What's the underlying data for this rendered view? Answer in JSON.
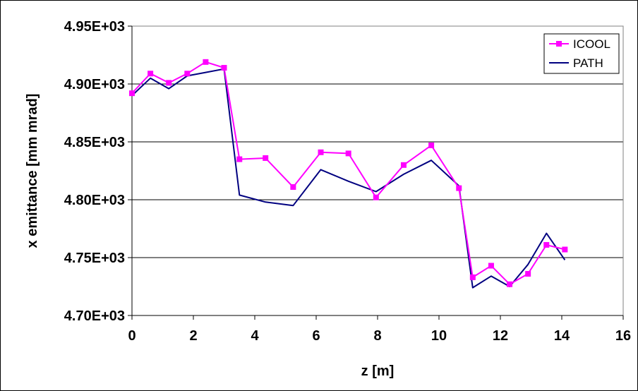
{
  "chart_data": {
    "type": "line",
    "xlabel": "z [m]",
    "ylabel": "x emittance [mm mrad]",
    "xlim": [
      0,
      16
    ],
    "ylim": [
      4700,
      4950
    ],
    "x_ticks": [
      0,
      2,
      4,
      6,
      8,
      10,
      12,
      14,
      16
    ],
    "x_tick_labels": [
      "0",
      "2",
      "4",
      "6",
      "8",
      "10",
      "12",
      "14",
      "16"
    ],
    "y_ticks": [
      4700,
      4750,
      4800,
      4850,
      4900,
      4950
    ],
    "y_tick_labels": [
      "4.70E+03",
      "4.75E+03",
      "4.80E+03",
      "4.85E+03",
      "4.90E+03",
      "4.95E+03"
    ],
    "grid": "horizontal major gridlines",
    "legend_position": "top-right",
    "series": [
      {
        "name": "ICOOL",
        "color": "#ff00ff",
        "marker": "square",
        "points": [
          [
            0.0,
            4892
          ],
          [
            0.6,
            4909
          ],
          [
            1.2,
            4901
          ],
          [
            1.8,
            4909
          ],
          [
            2.4,
            4919
          ],
          [
            3.0,
            4914
          ],
          [
            3.5,
            4835
          ],
          [
            4.35,
            4836
          ],
          [
            5.25,
            4811
          ],
          [
            6.15,
            4841
          ],
          [
            7.05,
            4840
          ],
          [
            7.95,
            4802
          ],
          [
            8.85,
            4830
          ],
          [
            9.75,
            4847
          ],
          [
            10.65,
            4810
          ],
          [
            11.1,
            4733
          ],
          [
            11.7,
            4743
          ],
          [
            12.3,
            4727
          ],
          [
            12.9,
            4736
          ],
          [
            13.5,
            4761
          ],
          [
            14.1,
            4757
          ]
        ]
      },
      {
        "name": "PATH",
        "color": "#000080",
        "marker": "none",
        "points": [
          [
            0.0,
            4890
          ],
          [
            0.6,
            4905
          ],
          [
            1.2,
            4896
          ],
          [
            1.8,
            4907
          ],
          [
            2.4,
            4910
          ],
          [
            3.0,
            4913
          ],
          [
            3.5,
            4804
          ],
          [
            4.35,
            4798
          ],
          [
            5.25,
            4795
          ],
          [
            6.15,
            4826
          ],
          [
            7.05,
            4816
          ],
          [
            7.95,
            4807
          ],
          [
            8.85,
            4822
          ],
          [
            9.75,
            4834
          ],
          [
            10.65,
            4812
          ],
          [
            11.1,
            4724
          ],
          [
            11.7,
            4734
          ],
          [
            12.3,
            4725
          ],
          [
            12.9,
            4744
          ],
          [
            13.5,
            4771
          ],
          [
            14.1,
            4748
          ]
        ]
      }
    ]
  }
}
